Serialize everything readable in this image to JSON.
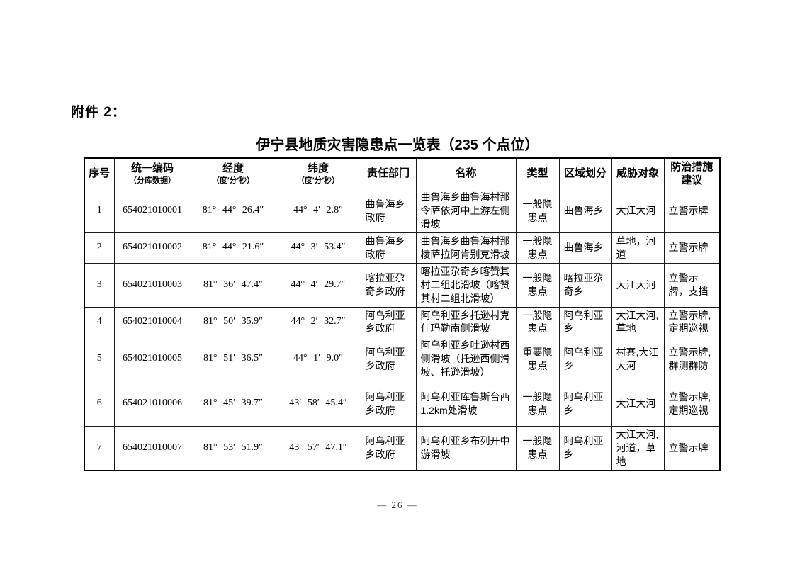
{
  "page": {
    "attachment_label": "附件 2：",
    "title": "伊宁县地质灾害隐患点一览表（235 个点位）",
    "page_number": "— 26 —"
  },
  "table": {
    "columns": [
      {
        "key": "index",
        "line1": "序号",
        "line2": ""
      },
      {
        "key": "code",
        "line1": "统一编码",
        "line2": "（分库数据）"
      },
      {
        "key": "longitude",
        "line1": "经度",
        "line2": "（度′分′秒）"
      },
      {
        "key": "latitude",
        "line1": "纬度",
        "line2": "（度′分′秒）"
      },
      {
        "key": "department",
        "line1": "责任部门",
        "line2": ""
      },
      {
        "key": "name",
        "line1": "名称",
        "line2": ""
      },
      {
        "key": "type",
        "line1": "类型",
        "line2": ""
      },
      {
        "key": "region",
        "line1": "区域划分",
        "line2": ""
      },
      {
        "key": "threat",
        "line1": "威胁对象",
        "line2": ""
      },
      {
        "key": "measures",
        "line1": "防治措施",
        "line2": "建议"
      }
    ],
    "rows": [
      {
        "index": "1",
        "code": "654021010001",
        "longitude": "81° 44° 26.4″",
        "latitude": "44° 4′ 2.8″",
        "department": "曲鲁海乡政府",
        "name": "曲鲁海乡曲鲁海村那令萨依河中上游左侧滑坡",
        "type": "一般隐患点",
        "region": "曲鲁海乡",
        "threat": "大江大河",
        "measures": "立警示牌"
      },
      {
        "index": "2",
        "code": "654021010002",
        "longitude": "81° 44° 21.6″",
        "latitude": "44° 3′ 53.4″",
        "department": "曲鲁海乡政府",
        "name": "曲鲁海乡曲鲁海村那棱萨拉阿肯别克滑坡",
        "type": "一般隐患点",
        "region": "曲鲁海乡",
        "threat": "草地，河道",
        "measures": "立警示牌"
      },
      {
        "index": "3",
        "code": "654021010003",
        "longitude": "81° 36′ 47.4″",
        "latitude": "44° 4′ 29.7″",
        "department": "喀拉亚尕奇乡政府",
        "name": "喀拉亚尕奇乡喀赞其村二组北滑坡（喀赞其村二组北滑坡）",
        "type": "一般隐患点",
        "region": "喀拉亚尕奇乡",
        "threat": "大江大河",
        "measures": "立警示牌，支挡"
      },
      {
        "index": "4",
        "code": "654021010004",
        "longitude": "81° 50′ 35.9″",
        "latitude": "44° 2′ 32.7″",
        "department": "阿乌利亚乡政府",
        "name": "阿乌利亚乡托逊村克什玛勒南侧滑坡",
        "type": "一般隐患点",
        "region": "阿乌利亚乡",
        "threat": "大江大河,草地",
        "measures": "立警示牌,定期巡视"
      },
      {
        "index": "5",
        "code": "654021010005",
        "longitude": "81° 51′ 36.5″",
        "latitude": "44° 1′ 9.0″",
        "department": "阿乌利亚乡政府",
        "name": "阿乌利亚乡吐逊村西侧滑坡（托逊西侧滑坡、托逊滑坡）",
        "type": "重要隐患点",
        "region": "阿乌利亚乡",
        "threat": "村寨,大江大河",
        "measures": "立警示牌,群测群防"
      },
      {
        "index": "6",
        "code": "654021010006",
        "longitude": "81° 45′ 39.7″",
        "latitude": "43′ 58′ 45.4″",
        "department": "阿乌利亚乡政府",
        "name": "阿乌利亚库鲁斯台西1.2km处滑坡",
        "type": "一般隐患点",
        "region": "阿乌利亚乡",
        "threat": "大江大河",
        "measures": "立警示牌,定期巡视"
      },
      {
        "index": "7",
        "code": "654021010007",
        "longitude": "81° 53′ 51.9″",
        "latitude": "43′ 57′ 47.1″",
        "department": "阿乌利亚乡政府",
        "name": "阿乌利亚乡布列开中游滑坡",
        "type": "一般隐患点",
        "region": "阿乌利亚乡",
        "threat": "大江大河,河道，草地",
        "measures": "立警示牌"
      }
    ]
  }
}
